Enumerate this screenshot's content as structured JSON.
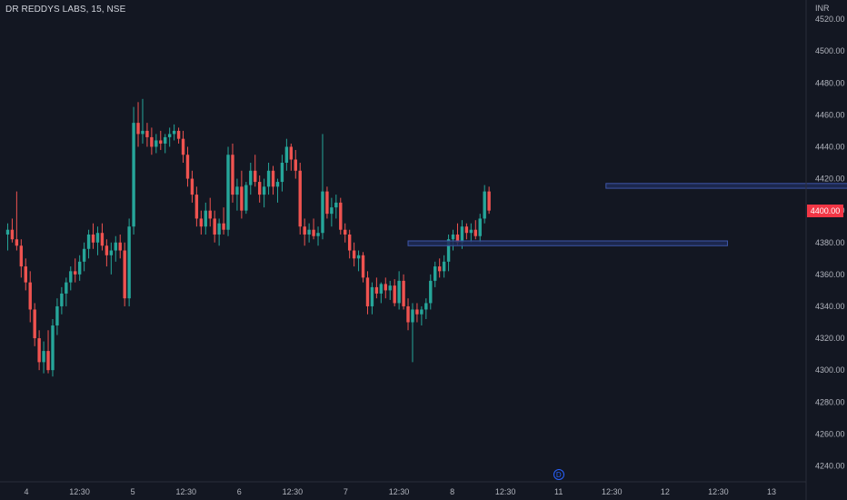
{
  "symbol_title": "DR REDDYS LABS, 15, NSE",
  "currency_unit": "INR",
  "current_price_label": "4400.00",
  "dividend_marker_label": "D",
  "colors": {
    "background": "#131722",
    "up": "#26a69a",
    "down": "#ef5350",
    "zone_fill": "#1e2a55",
    "zone_border": "#3d55a8",
    "arrow": "#4caf50",
    "axis_text": "#b2b5be"
  },
  "chart_data": {
    "type": "candlestick",
    "title": "DR REDDYS LABS, 15, NSE",
    "ylabel": "INR",
    "ylim": [
      4230,
      4532
    ],
    "y_ticks": [
      4240,
      4260,
      4280,
      4300,
      4320,
      4340,
      4360,
      4380,
      4400,
      4420,
      4440,
      4460,
      4480,
      4500,
      4520
    ],
    "y_tick_labels": [
      "4240.00",
      "4260.00",
      "4280.00",
      "4300.00",
      "4320.00",
      "4340.00",
      "4360.00",
      "4380.00",
      "4400.00",
      "4420.00",
      "4440.00",
      "4460.00",
      "4480.00",
      "4500.00",
      "4520.00"
    ],
    "x_labels": [
      "4",
      "12:30",
      "5",
      "12:30",
      "6",
      "12:30",
      "7",
      "12:30",
      "8",
      "12:30",
      "11",
      "12:30",
      "12",
      "12:30",
      "13"
    ],
    "last_price": 4400,
    "grid": false,
    "candles": [
      [
        4385,
        4392,
        4375,
        4388
      ],
      [
        4388,
        4395,
        4380,
        4382
      ],
      [
        4382,
        4412,
        4375,
        4378
      ],
      [
        4378,
        4382,
        4358,
        4365
      ],
      [
        4365,
        4370,
        4350,
        4355
      ],
      [
        4355,
        4362,
        4330,
        4338
      ],
      [
        4338,
        4342,
        4315,
        4320
      ],
      [
        4320,
        4325,
        4300,
        4305
      ],
      [
        4305,
        4318,
        4298,
        4312
      ],
      [
        4312,
        4325,
        4298,
        4300
      ],
      [
        4300,
        4332,
        4296,
        4328
      ],
      [
        4328,
        4345,
        4322,
        4340
      ],
      [
        4340,
        4352,
        4335,
        4348
      ],
      [
        4348,
        4358,
        4340,
        4355
      ],
      [
        4355,
        4365,
        4350,
        4362
      ],
      [
        4362,
        4370,
        4355,
        4360
      ],
      [
        4360,
        4372,
        4356,
        4368
      ],
      [
        4368,
        4380,
        4362,
        4376
      ],
      [
        4376,
        4388,
        4370,
        4385
      ],
      [
        4385,
        4392,
        4376,
        4380
      ],
      [
        4380,
        4390,
        4372,
        4386
      ],
      [
        4386,
        4392,
        4375,
        4378
      ],
      [
        4378,
        4382,
        4365,
        4372
      ],
      [
        4372,
        4380,
        4360,
        4375
      ],
      [
        4375,
        4384,
        4368,
        4380
      ],
      [
        4380,
        4385,
        4370,
        4375
      ],
      [
        4375,
        4380,
        4340,
        4345
      ],
      [
        4345,
        4395,
        4340,
        4390
      ],
      [
        4390,
        4465,
        4385,
        4455
      ],
      [
        4455,
        4468,
        4440,
        4448
      ],
      [
        4448,
        4470,
        4442,
        4450
      ],
      [
        4450,
        4455,
        4440,
        4446
      ],
      [
        4446,
        4452,
        4435,
        4440
      ],
      [
        4440,
        4448,
        4436,
        4444
      ],
      [
        4444,
        4450,
        4438,
        4442
      ],
      [
        4442,
        4448,
        4436,
        4446
      ],
      [
        4446,
        4452,
        4440,
        4448
      ],
      [
        4448,
        4454,
        4444,
        4450
      ],
      [
        4450,
        4452,
        4442,
        4445
      ],
      [
        4445,
        4450,
        4430,
        4435
      ],
      [
        4435,
        4440,
        4415,
        4420
      ],
      [
        4420,
        4425,
        4405,
        4410
      ],
      [
        4410,
        4415,
        4390,
        4395
      ],
      [
        4395,
        4400,
        4385,
        4390
      ],
      [
        4390,
        4405,
        4385,
        4400
      ],
      [
        4400,
        4408,
        4390,
        4395
      ],
      [
        4395,
        4400,
        4380,
        4385
      ],
      [
        4385,
        4395,
        4378,
        4392
      ],
      [
        4392,
        4402,
        4385,
        4388
      ],
      [
        4388,
        4440,
        4384,
        4435
      ],
      [
        4435,
        4442,
        4405,
        4410
      ],
      [
        4410,
        4420,
        4400,
        4415
      ],
      [
        4415,
        4425,
        4395,
        4400
      ],
      [
        4400,
        4418,
        4398,
        4416
      ],
      [
        4416,
        4430,
        4410,
        4425
      ],
      [
        4425,
        4435,
        4415,
        4418
      ],
      [
        4418,
        4422,
        4405,
        4410
      ],
      [
        4410,
        4420,
        4402,
        4415
      ],
      [
        4415,
        4430,
        4410,
        4425
      ],
      [
        4425,
        4428,
        4410,
        4415
      ],
      [
        4415,
        4420,
        4405,
        4418
      ],
      [
        4418,
        4435,
        4412,
        4430
      ],
      [
        4430,
        4445,
        4425,
        4440
      ],
      [
        4440,
        4442,
        4425,
        4432
      ],
      [
        4432,
        4438,
        4420,
        4425
      ],
      [
        4425,
        4430,
        4385,
        4390
      ],
      [
        4390,
        4395,
        4378,
        4385
      ],
      [
        4385,
        4392,
        4380,
        4388
      ],
      [
        4388,
        4395,
        4382,
        4384
      ],
      [
        4384,
        4390,
        4378,
        4386
      ],
      [
        4386,
        4448,
        4382,
        4412
      ],
      [
        4412,
        4415,
        4395,
        4398
      ],
      [
        4398,
        4408,
        4390,
        4402
      ],
      [
        4402,
        4410,
        4395,
        4405
      ],
      [
        4405,
        4408,
        4385,
        4388
      ],
      [
        4388,
        4392,
        4380,
        4385
      ],
      [
        4385,
        4388,
        4370,
        4375
      ],
      [
        4375,
        4380,
        4365,
        4370
      ],
      [
        4370,
        4375,
        4362,
        4372
      ],
      [
        4372,
        4374,
        4355,
        4358
      ],
      [
        4358,
        4362,
        4335,
        4340
      ],
      [
        4340,
        4355,
        4335,
        4352
      ],
      [
        4352,
        4358,
        4345,
        4348
      ],
      [
        4348,
        4355,
        4342,
        4354
      ],
      [
        4354,
        4358,
        4345,
        4350
      ],
      [
        4350,
        4356,
        4344,
        4353
      ],
      [
        4353,
        4357,
        4340,
        4342
      ],
      [
        4342,
        4362,
        4338,
        4356
      ],
      [
        4356,
        4360,
        4338,
        4340
      ],
      [
        4340,
        4345,
        4325,
        4330
      ],
      [
        4330,
        4342,
        4305,
        4338
      ],
      [
        4338,
        4342,
        4330,
        4335
      ],
      [
        4335,
        4340,
        4328,
        4338
      ],
      [
        4338,
        4345,
        4332,
        4342
      ],
      [
        4342,
        4360,
        4338,
        4356
      ],
      [
        4356,
        4368,
        4352,
        4365
      ],
      [
        4365,
        4370,
        4358,
        4362
      ],
      [
        4362,
        4372,
        4358,
        4368
      ],
      [
        4368,
        4385,
        4362,
        4382
      ],
      [
        4382,
        4388,
        4375,
        4385
      ],
      [
        4385,
        4392,
        4378,
        4380
      ],
      [
        4380,
        4394,
        4376,
        4390
      ],
      [
        4390,
        4392,
        4382,
        4386
      ],
      [
        4386,
        4392,
        4380,
        4388
      ],
      [
        4388,
        4394,
        4382,
        4384
      ],
      [
        4384,
        4398,
        4380,
        4395
      ],
      [
        4395,
        4416,
        4392,
        4412
      ],
      [
        4412,
        4415,
        4398,
        4400
      ]
    ],
    "annotations": [
      {
        "type": "zone",
        "label": "",
        "x_start": 89,
        "x_end": 160,
        "y_low": 4378,
        "y_high": 4381
      },
      {
        "type": "zone",
        "label": "",
        "x_start": 133,
        "x_end": 242,
        "y_low": 4414,
        "y_high": 4417
      },
      {
        "type": "arrow",
        "label": "",
        "points": [
          [
            221,
            4428
          ],
          [
            231,
            4418
          ],
          [
            240,
            4450
          ]
        ]
      }
    ]
  }
}
